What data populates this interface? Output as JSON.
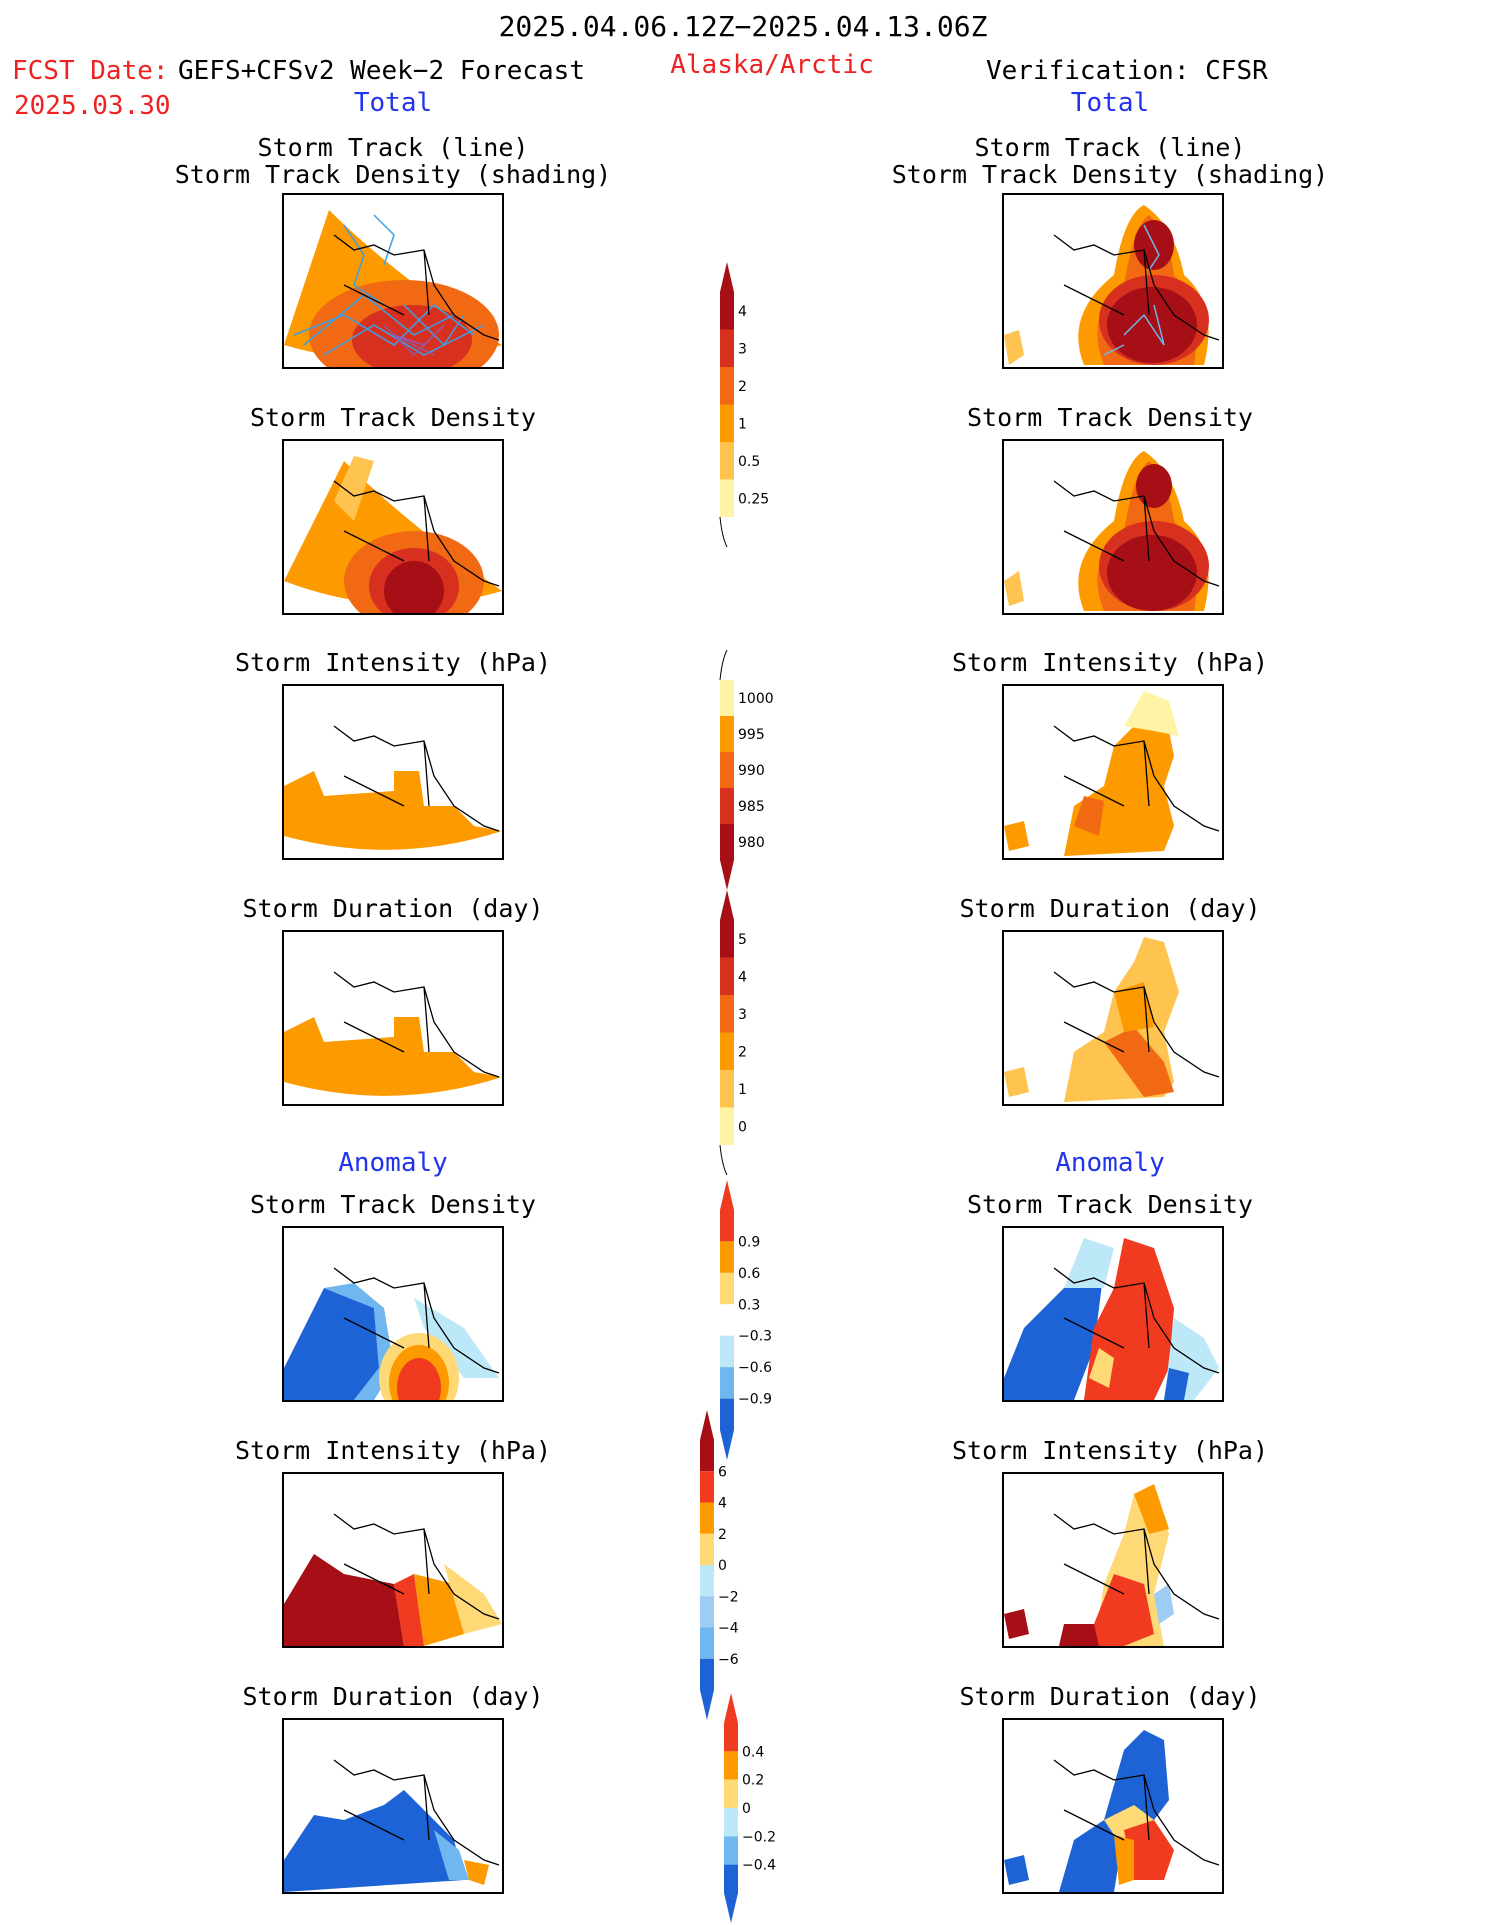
{
  "header": {
    "date_range": "2025.04.06.12Z−2025.04.13.06Z",
    "fcst_label": "FCST Date:",
    "fcst_model": "GEFS+CFSv2 Week−2 Forecast",
    "fcst_date": "2025.03.30",
    "region": "Alaska/Arctic",
    "verification": "Verification: CFSR"
  },
  "columns": {
    "left_total": "Total",
    "right_total": "Total",
    "left_anomaly": "Anomaly",
    "right_anomaly": "Anomaly"
  },
  "panel_titles": {
    "track_line": "Storm Track (line)",
    "track_shading": "Storm Track Density (shading)",
    "density": "Storm Track Density",
    "intensity": "Storm Intensity (hPa)",
    "duration": "Storm Duration (day)"
  },
  "colorbars": {
    "density_total": {
      "labels": [
        "4",
        "3",
        "2",
        "1",
        "0.5",
        "0.25"
      ],
      "colors": [
        "#a50f15",
        "#d7301f",
        "#f16913",
        "#fd9a00",
        "#fec44f",
        "#fff3a6"
      ]
    },
    "intensity_total": {
      "labels": [
        "1000",
        "995",
        "990",
        "985",
        "980"
      ],
      "colors": [
        "#fff3a6",
        "#fd9a00",
        "#f16913",
        "#d7301f",
        "#a50f15"
      ]
    },
    "duration_total": {
      "labels": [
        "5",
        "4",
        "3",
        "2",
        "1",
        "0"
      ],
      "colors": [
        "#a50f15",
        "#d7301f",
        "#f16913",
        "#fd9a00",
        "#fec44f",
        "#fff3a6"
      ]
    },
    "density_anom": {
      "labels": [
        "0.9",
        "0.6",
        "0.3",
        "−0.3",
        "−0.6",
        "−0.9"
      ],
      "colors": [
        "#f03b20",
        "#fd9a00",
        "#fed976",
        "#ffffff",
        "#bde8f8",
        "#6fb7ee",
        "#1e63d6"
      ]
    },
    "intensity_anom": {
      "labels": [
        "6",
        "4",
        "2",
        "0",
        "−2",
        "−4",
        "−6"
      ],
      "colors": [
        "#a50f15",
        "#f03b20",
        "#fd9a00",
        "#fed976",
        "#bde8f8",
        "#9dcdf5",
        "#6fb7ee",
        "#1e63d6"
      ]
    },
    "duration_anom": {
      "labels": [
        "0.4",
        "0.2",
        "0",
        "−0.2",
        "−0.4"
      ],
      "colors": [
        "#f03b20",
        "#fd9a00",
        "#fed976",
        "#bde8f8",
        "#6fb7ee",
        "#1e63d6"
      ]
    }
  }
}
